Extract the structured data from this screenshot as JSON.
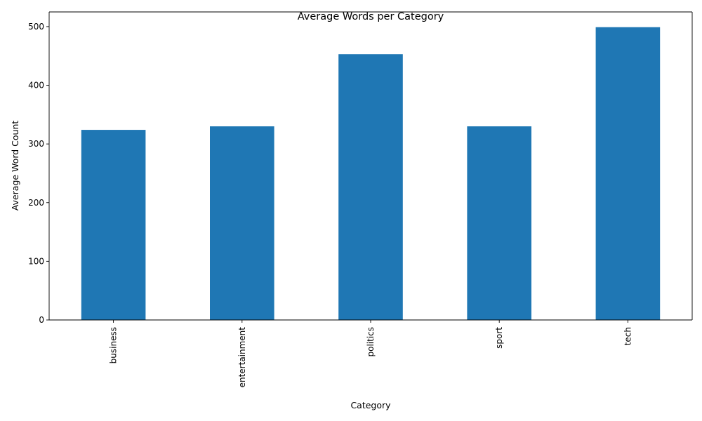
{
  "chart_data": {
    "type": "bar",
    "title": "Average Words per Category",
    "xlabel": "Category",
    "ylabel": "Average Word Count",
    "categories": [
      "business",
      "entertainment",
      "politics",
      "sport",
      "tech"
    ],
    "values": [
      324,
      330,
      453,
      330,
      499
    ],
    "ylim": [
      0,
      525
    ],
    "yticks": [
      0,
      100,
      200,
      300,
      400,
      500
    ],
    "bar_color": "#1f77b4",
    "grid": false,
    "legend": "none"
  }
}
